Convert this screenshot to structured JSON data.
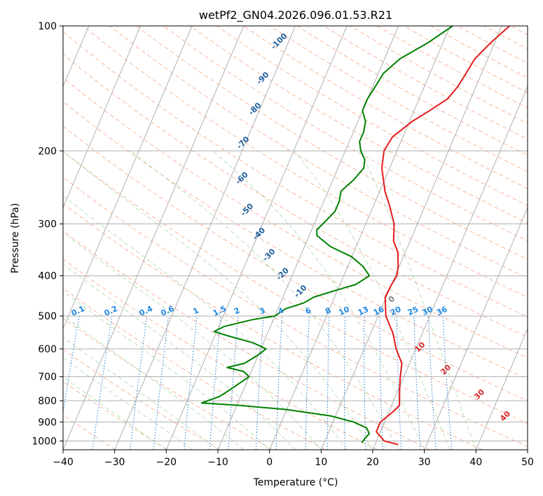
{
  "chart_data": {
    "type": "line",
    "title": "wetPf2_GN04.2026.096.01.53.R21",
    "xlabel": "Temperature (°C)",
    "ylabel": "Pressure (hPa)",
    "xlim": [
      -40,
      50
    ],
    "ylim": [
      1050,
      100
    ],
    "y_scale": "log",
    "x_ticks": [
      -40,
      -30,
      -20,
      -10,
      0,
      10,
      20,
      30,
      40,
      50
    ],
    "x_tick_labels": [
      "−40",
      "−30",
      "−20",
      "−10",
      "0",
      "10",
      "20",
      "30",
      "40",
      "50"
    ],
    "y_ticks": [
      100,
      200,
      300,
      400,
      500,
      600,
      700,
      800,
      900,
      1000
    ],
    "y_tick_labels": [
      "100",
      "200",
      "300",
      "400",
      "500",
      "600",
      "700",
      "800",
      "900",
      "1000"
    ],
    "grid": true,
    "series": [
      {
        "color": "#e41a1c",
        "points": [
          [
            1020,
            24.5
          ],
          [
            1000,
            21.5
          ],
          [
            950,
            19.2
          ],
          [
            900,
            19.2
          ],
          [
            850,
            20.8
          ],
          [
            820,
            21.5
          ],
          [
            750,
            20.2
          ],
          [
            700,
            19.3
          ],
          [
            650,
            18.5
          ],
          [
            600,
            16.2
          ],
          [
            550,
            14.3
          ],
          [
            500,
            11.5
          ],
          [
            450,
            9.8
          ],
          [
            420,
            10.0
          ],
          [
            400,
            10.3
          ],
          [
            380,
            9.8
          ],
          [
            350,
            8.5
          ],
          [
            330,
            6.8
          ],
          [
            300,
            5.5
          ],
          [
            270,
            3.0
          ],
          [
            250,
            1.0
          ],
          [
            220,
            -1.5
          ],
          [
            200,
            -2.5
          ],
          [
            185,
            -2.0
          ],
          [
            170,
            0.5
          ],
          [
            160,
            3.0
          ],
          [
            150,
            5.5
          ],
          [
            140,
            6.5
          ],
          [
            130,
            7.0
          ],
          [
            120,
            7.5
          ],
          [
            110,
            9.2
          ],
          [
            100,
            11.5
          ]
        ]
      },
      {
        "color": "#008000",
        "points": [
          [
            1010,
            17.3
          ],
          [
            990,
            17.5
          ],
          [
            960,
            18.0
          ],
          [
            930,
            17.0
          ],
          [
            900,
            14.0
          ],
          [
            870,
            9.0
          ],
          [
            840,
            0.0
          ],
          [
            820,
            -10.0
          ],
          [
            810,
            -17.0
          ],
          [
            800,
            -16.0
          ],
          [
            780,
            -14.0
          ],
          [
            760,
            -13.0
          ],
          [
            740,
            -12.0
          ],
          [
            720,
            -11.0
          ],
          [
            700,
            -10.0
          ],
          [
            680,
            -11.5
          ],
          [
            665,
            -15.0
          ],
          [
            650,
            -12.0
          ],
          [
            620,
            -10.0
          ],
          [
            600,
            -9.0
          ],
          [
            580,
            -12.0
          ],
          [
            560,
            -17.0
          ],
          [
            545,
            -20.5
          ],
          [
            530,
            -19.0
          ],
          [
            510,
            -14.0
          ],
          [
            500,
            -10.0
          ],
          [
            480,
            -8.5
          ],
          [
            465,
            -5.5
          ],
          [
            450,
            -4.0
          ],
          [
            430,
            0.5
          ],
          [
            420,
            3.0
          ],
          [
            400,
            5.0
          ],
          [
            380,
            3.0
          ],
          [
            360,
            0.0
          ],
          [
            340,
            -5.0
          ],
          [
            320,
            -8.5
          ],
          [
            310,
            -9.0
          ],
          [
            295,
            -8.0
          ],
          [
            280,
            -7.0
          ],
          [
            265,
            -7.0
          ],
          [
            250,
            -7.5
          ],
          [
            235,
            -6.0
          ],
          [
            220,
            -5.0
          ],
          [
            210,
            -5.5
          ],
          [
            200,
            -7.0
          ],
          [
            190,
            -8.0
          ],
          [
            180,
            -8.0
          ],
          [
            170,
            -8.5
          ],
          [
            160,
            -10.0
          ],
          [
            150,
            -10.0
          ],
          [
            140,
            -9.5
          ],
          [
            130,
            -9.0
          ],
          [
            120,
            -7.0
          ],
          [
            110,
            -3.0
          ],
          [
            100,
            0.5
          ]
        ]
      }
    ],
    "dry_adiabat_labels": [
      "-100",
      "-90",
      "-80",
      "-70",
      "-60",
      "-50",
      "-40",
      "-30",
      "-20",
      "-10",
      "0",
      "10",
      "20",
      "30",
      "40"
    ],
    "mixing_ratio_labels": [
      "0.1",
      "0.2",
      "0.4",
      "0.6",
      "1",
      "1.5",
      "2",
      "3",
      "4",
      "6",
      "8",
      "10",
      "13",
      "16",
      "20",
      "25",
      "30",
      "36"
    ],
    "colors": {
      "isotherm": "#b0b0b0",
      "isobar": "#b0b0b0",
      "dry_adiabat": "#f4a582",
      "moist_adiabat": "#a6d8a6",
      "mixing_ratio": "#1f78d1",
      "adiabat_label": "#1f5f9f",
      "mixing_label": "#1e88e5",
      "warm_label": "#d62728",
      "zero_label": "#808080"
    }
  }
}
